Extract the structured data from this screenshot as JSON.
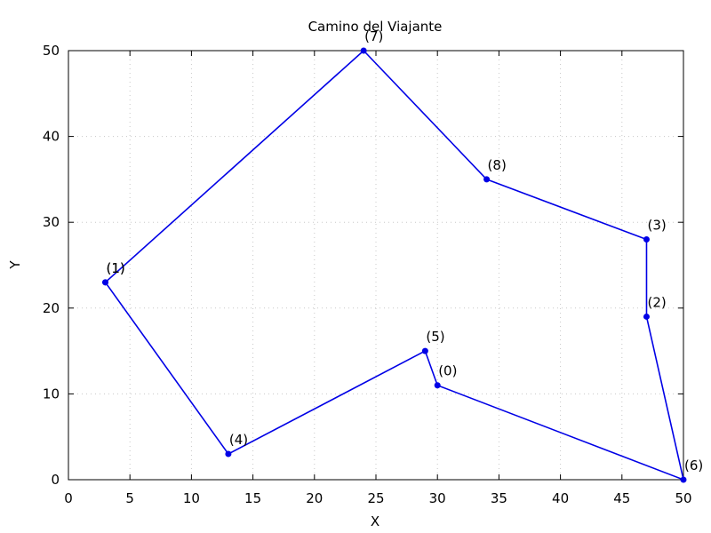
{
  "chart_data": {
    "type": "line",
    "title": "Camino del Viajante",
    "xlabel": "X",
    "ylabel": "Y",
    "xlim": [
      0,
      50
    ],
    "ylim": [
      0,
      50
    ],
    "xticks": [
      0,
      5,
      10,
      15,
      20,
      25,
      30,
      35,
      40,
      45,
      50
    ],
    "yticks": [
      0,
      10,
      20,
      30,
      40,
      50
    ],
    "grid": true,
    "series_color": "#0000e6",
    "path": [
      {
        "label": "(1)",
        "x": 3,
        "y": 23
      },
      {
        "label": "(7)",
        "x": 24,
        "y": 50
      },
      {
        "label": "(8)",
        "x": 34,
        "y": 35
      },
      {
        "label": "(3)",
        "x": 47,
        "y": 28
      },
      {
        "label": "(2)",
        "x": 47,
        "y": 19
      },
      {
        "label": "(6)",
        "x": 50,
        "y": 0
      },
      {
        "label": "(0)",
        "x": 30,
        "y": 11
      },
      {
        "label": "(5)",
        "x": 29,
        "y": 15
      },
      {
        "label": "(4)",
        "x": 13,
        "y": 3
      },
      {
        "label": "(1)",
        "x": 3,
        "y": 23
      }
    ]
  }
}
